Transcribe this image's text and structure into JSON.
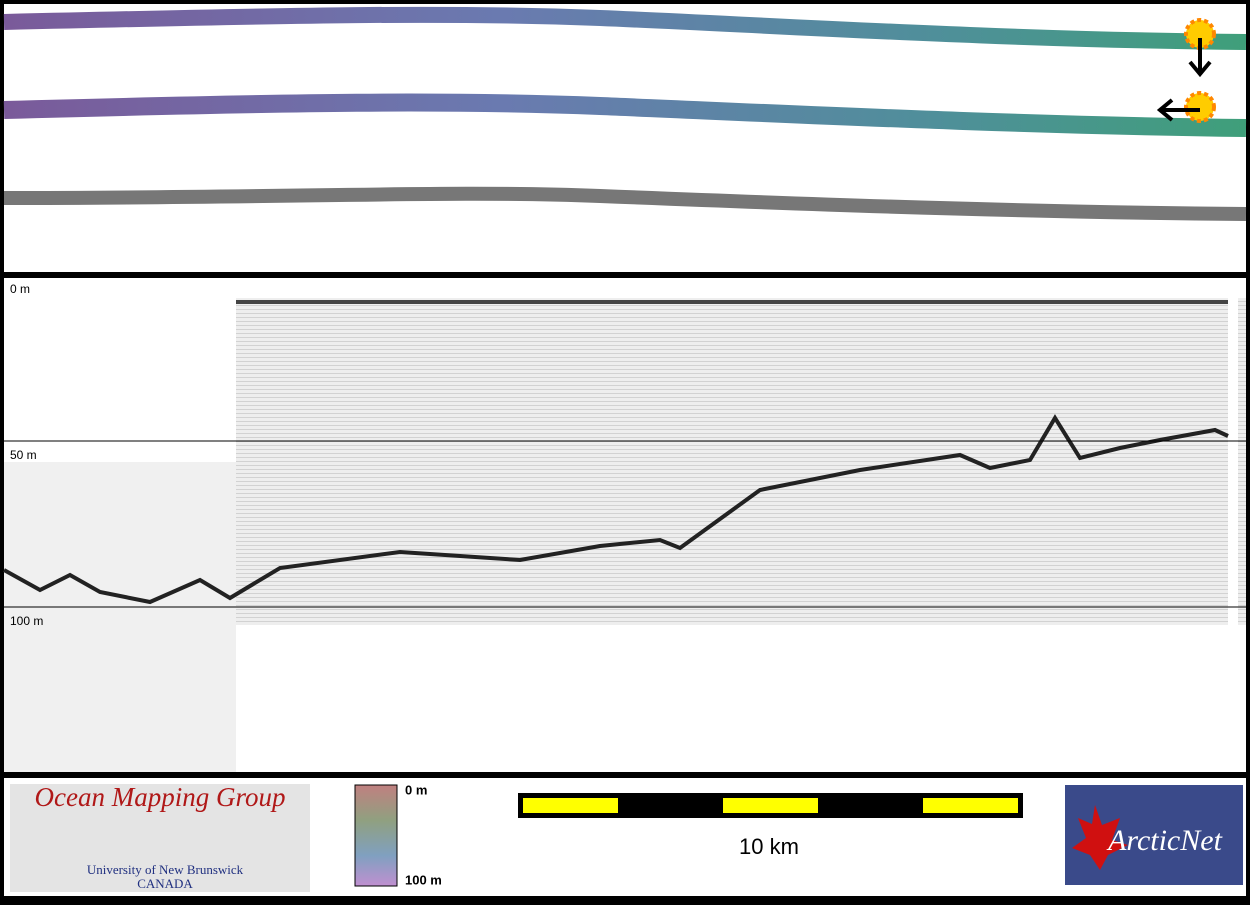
{
  "profile": {
    "depth_labels": [
      "0 m",
      "50 m",
      "100 m"
    ]
  },
  "footer": {
    "logo_left": {
      "title": "Ocean Mapping Group",
      "line1": "University of New Brunswick",
      "line2": "CANADA"
    },
    "colorbar": {
      "top": "0 m",
      "bottom": "100 m"
    },
    "scale_bar": {
      "label": "10 km"
    },
    "logo_right": {
      "title": "ArcticNet"
    }
  }
}
